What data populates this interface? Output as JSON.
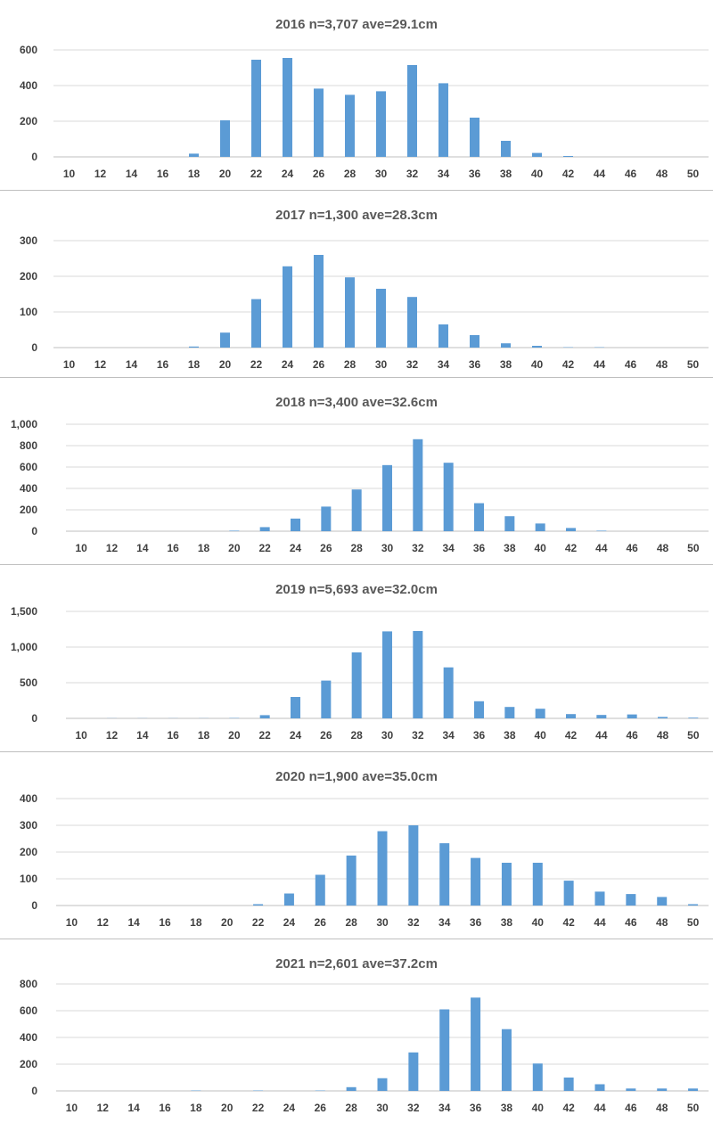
{
  "chart_data": [
    {
      "type": "bar",
      "title": "2016 n=3,707 ave=29.1cm",
      "categories": [
        "10",
        "12",
        "14",
        "16",
        "18",
        "20",
        "22",
        "24",
        "26",
        "28",
        "30",
        "32",
        "34",
        "36",
        "38",
        "40",
        "42",
        "44",
        "46",
        "48",
        "50"
      ],
      "values": [
        0,
        0,
        0,
        0,
        18,
        205,
        545,
        555,
        383,
        348,
        368,
        515,
        413,
        220,
        90,
        22,
        5,
        0,
        0,
        0,
        0
      ],
      "ylim": [
        0,
        600
      ],
      "yticks": [
        0,
        200,
        400,
        600
      ],
      "ytick_labels": [
        "0",
        "200",
        "400",
        "600"
      ],
      "color": "#5b9bd5",
      "grid": true
    },
    {
      "type": "bar",
      "title": "2017 n=1,300 ave=28.3cm",
      "categories": [
        "10",
        "12",
        "14",
        "16",
        "18",
        "20",
        "22",
        "24",
        "26",
        "28",
        "30",
        "32",
        "34",
        "36",
        "38",
        "40",
        "42",
        "44",
        "46",
        "48",
        "50"
      ],
      "values": [
        0,
        0,
        0,
        0,
        3,
        42,
        136,
        228,
        260,
        197,
        165,
        142,
        65,
        35,
        12,
        5,
        1,
        1,
        0,
        0,
        0
      ],
      "ylim": [
        0,
        300
      ],
      "yticks": [
        0,
        100,
        200,
        300
      ],
      "ytick_labels": [
        "0",
        "100",
        "200",
        "300"
      ],
      "color": "#5b9bd5",
      "grid": true
    },
    {
      "type": "bar",
      "title": "2018 n=3,400 ave=32.6cm",
      "categories": [
        "10",
        "12",
        "14",
        "16",
        "18",
        "20",
        "22",
        "24",
        "26",
        "28",
        "30",
        "32",
        "34",
        "36",
        "38",
        "40",
        "42",
        "44",
        "46",
        "48",
        "50"
      ],
      "values": [
        0,
        0,
        0,
        0,
        0,
        5,
        38,
        118,
        230,
        390,
        618,
        860,
        640,
        262,
        140,
        72,
        30,
        5,
        0,
        0,
        0
      ],
      "ylim": [
        0,
        1000
      ],
      "yticks": [
        0,
        200,
        400,
        600,
        800,
        1000
      ],
      "ytick_labels": [
        "0",
        "200",
        "400",
        "600",
        "800",
        "1,000"
      ],
      "color": "#5b9bd5",
      "grid": true
    },
    {
      "type": "bar",
      "title": "2019 n=5,693 ave=32.0cm",
      "categories": [
        "10",
        "12",
        "14",
        "16",
        "18",
        "20",
        "22",
        "24",
        "26",
        "28",
        "30",
        "32",
        "34",
        "36",
        "38",
        "40",
        "42",
        "44",
        "46",
        "48",
        "50"
      ],
      "values": [
        0,
        2,
        2,
        2,
        2,
        5,
        45,
        300,
        530,
        925,
        1220,
        1225,
        715,
        240,
        160,
        135,
        60,
        48,
        55,
        20,
        10
      ],
      "ylim": [
        0,
        1500
      ],
      "yticks": [
        0,
        500,
        1000,
        1500
      ],
      "ytick_labels": [
        "0",
        "500",
        "1,000",
        "1,500"
      ],
      "color": "#5b9bd5",
      "grid": true
    },
    {
      "type": "bar",
      "title": "2020 n=1,900 ave=35.0cm",
      "categories": [
        "10",
        "12",
        "14",
        "16",
        "18",
        "20",
        "22",
        "24",
        "26",
        "28",
        "30",
        "32",
        "34",
        "36",
        "38",
        "40",
        "42",
        "44",
        "46",
        "48",
        "50"
      ],
      "values": [
        0,
        0,
        0,
        0,
        0,
        0,
        5,
        45,
        115,
        187,
        278,
        300,
        233,
        178,
        160,
        160,
        93,
        52,
        43,
        32,
        5
      ],
      "ylim": [
        0,
        400
      ],
      "yticks": [
        0,
        100,
        200,
        300,
        400
      ],
      "ytick_labels": [
        "0",
        "100",
        "200",
        "300",
        "400"
      ],
      "color": "#5b9bd5",
      "grid": true
    },
    {
      "type": "bar",
      "title": "2021 n=2,601 ave=37.2cm",
      "categories": [
        "10",
        "12",
        "14",
        "16",
        "18",
        "20",
        "22",
        "24",
        "26",
        "28",
        "30",
        "32",
        "34",
        "36",
        "38",
        "40",
        "42",
        "44",
        "46",
        "48",
        "50"
      ],
      "values": [
        0,
        0,
        0,
        0,
        3,
        0,
        3,
        0,
        3,
        28,
        95,
        288,
        610,
        698,
        462,
        205,
        100,
        50,
        18,
        18,
        18
      ],
      "ylim": [
        0,
        800
      ],
      "yticks": [
        0,
        200,
        400,
        600,
        800
      ],
      "ytick_labels": [
        "0",
        "200",
        "400",
        "600",
        "800"
      ],
      "color": "#5b9bd5",
      "grid": true
    }
  ]
}
